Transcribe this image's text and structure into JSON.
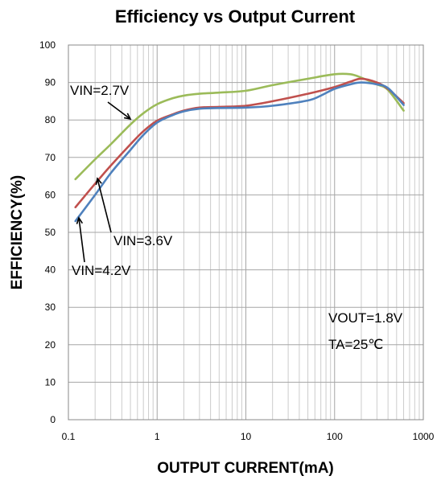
{
  "chart_data": {
    "type": "line",
    "title": "Efficiency  vs  Output Current",
    "xlabel": "OUTPUT CURRENT(mA)",
    "ylabel": "EFFICIENCY(%)",
    "xscale": "log",
    "xlim": [
      0.1,
      1000
    ],
    "ylim": [
      0,
      100
    ],
    "x_ticks": [
      "0.1",
      "1",
      "10",
      "100",
      "1000"
    ],
    "y_ticks": [
      "0",
      "10",
      "20",
      "30",
      "40",
      "50",
      "60",
      "70",
      "80",
      "90",
      "100"
    ],
    "grid": true,
    "series": [
      {
        "name": "VIN=2.7V",
        "color": "#9bbb59",
        "x": [
          0.12,
          0.2,
          0.3,
          0.5,
          0.7,
          1,
          1.5,
          2,
          3,
          5,
          10,
          20,
          50,
          100,
          150,
          200,
          300,
          400,
          600
        ],
        "y": [
          64.2,
          69.5,
          73.5,
          78.8,
          81.8,
          84.2,
          85.8,
          86.5,
          87,
          87.3,
          87.8,
          89.3,
          91,
          92.2,
          92.2,
          91.3,
          89.5,
          88,
          82.5
        ]
      },
      {
        "name": "VIN=3.6V",
        "color": "#c0504d",
        "x": [
          0.12,
          0.2,
          0.3,
          0.5,
          0.7,
          1,
          1.5,
          2,
          3,
          5,
          10,
          20,
          50,
          100,
          150,
          200,
          300,
          400,
          600
        ],
        "y": [
          56.7,
          63,
          67.8,
          73.5,
          77,
          79.8,
          81.5,
          82.5,
          83.3,
          83.5,
          83.8,
          85,
          87,
          88.8,
          90.2,
          91,
          90,
          88.3,
          84.5
        ]
      },
      {
        "name": "VIN=4.2V",
        "color": "#4f81bd",
        "x": [
          0.12,
          0.2,
          0.3,
          0.5,
          0.7,
          1,
          1.5,
          2,
          3,
          5,
          10,
          20,
          50,
          70,
          100,
          150,
          200,
          300,
          400,
          600
        ],
        "y": [
          53,
          60,
          65.8,
          72,
          76,
          79.3,
          81.3,
          82.3,
          83,
          83.2,
          83.3,
          83.8,
          85.2,
          86.5,
          88.3,
          89.5,
          90,
          89.5,
          88.5,
          84
        ]
      }
    ],
    "annotations": [
      {
        "text": "VIN=2.7V",
        "series": "VIN=2.7V"
      },
      {
        "text": "VIN=3.6V",
        "series": "VIN=3.6V"
      },
      {
        "text": "VIN=4.2V",
        "series": "VIN=4.2V"
      },
      {
        "text": "VOUT=1.8V"
      },
      {
        "text": "TA=25℃"
      }
    ]
  }
}
